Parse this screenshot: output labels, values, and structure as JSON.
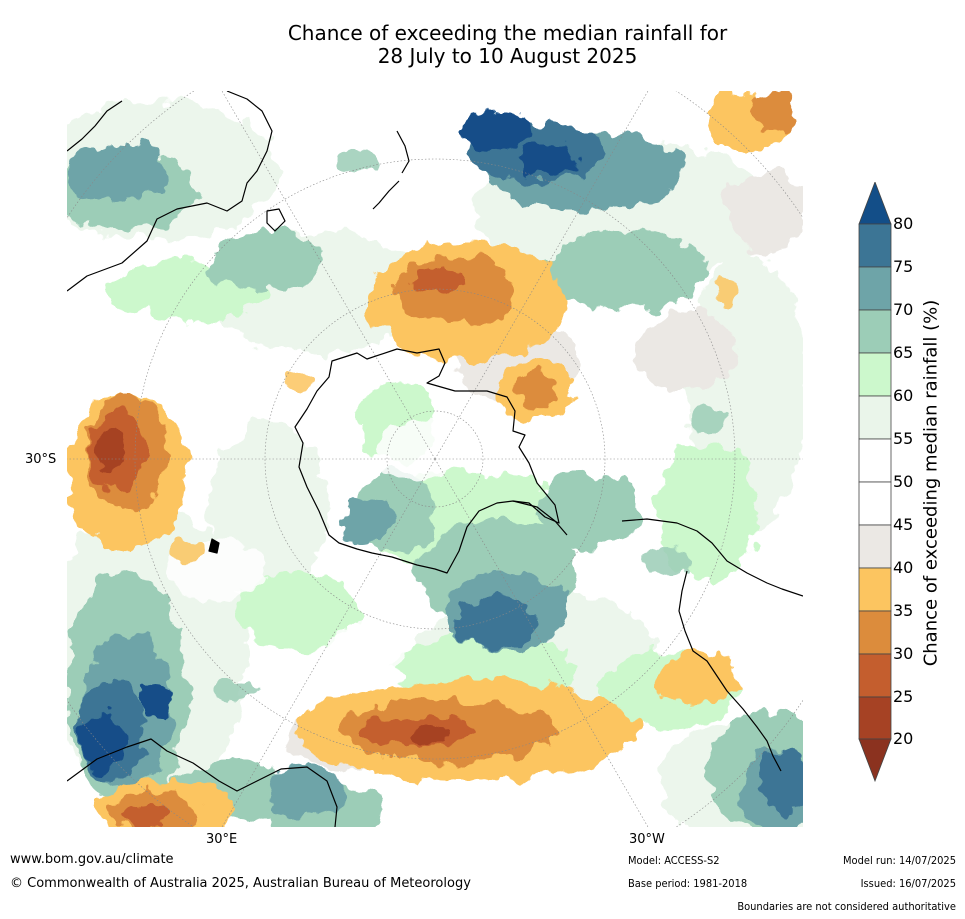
{
  "title": {
    "line1": "Chance of exceeding the median rainfall for",
    "line2": "28 July to 10 August 2025"
  },
  "graticule_labels": {
    "lat": "30°S",
    "lon_left": "30°E",
    "lon_right": "30°W"
  },
  "colorbar": {
    "label": "Chance of exceeding median rainfall (%)",
    "ticks": [
      "80",
      "75",
      "70",
      "65",
      "60",
      "55",
      "50",
      "45",
      "40",
      "35",
      "30",
      "25",
      "20"
    ],
    "colors": {
      "above80": "#134e88",
      "b75_80": "#3c7595",
      "b70_75": "#6ea4a8",
      "b65_70": "#9ccdb7",
      "b60_65": "#ccf8cc",
      "b55_60": "#eaf5ea",
      "b45_55": "#ffffff",
      "b40_45": "#ebe8e4",
      "b35_40": "#fcc560",
      "b30_35": "#dc8c3c",
      "b25_30": "#c45e2e",
      "b20_25": "#a64224",
      "below20": "#8b321f"
    }
  },
  "footer": {
    "url": "www.bom.gov.au/climate",
    "copyright": "© Commonwealth of Australia 2025, Australian Bureau of Meteorology",
    "model": "Model: ACCESS-S2",
    "base_period": "Base period: 1981-2018",
    "model_run": "Model run: 14/07/2025",
    "issued": "Issued: 16/07/2025",
    "disclaimer": "Boundaries are not considered authoritative"
  }
}
